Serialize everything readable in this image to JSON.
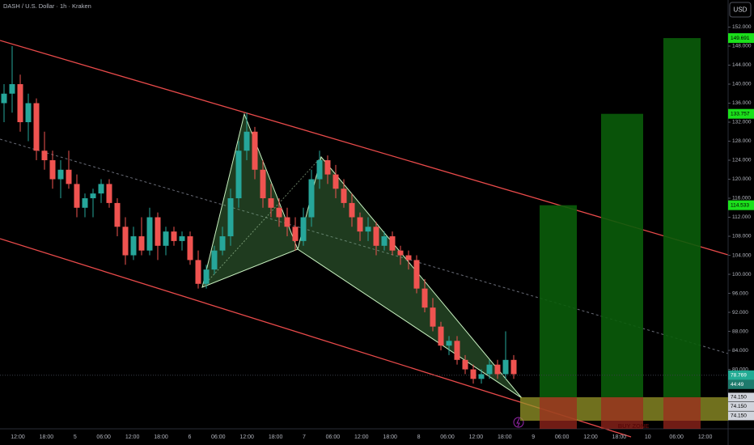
{
  "chart_data": {
    "type": "candlestick",
    "title": "DASH / U.S. Dollar · 1h · Kraken",
    "currency": "USD",
    "up_color": "#26a69a",
    "down_color": "#ef5350",
    "ylim": [
      67.5,
      157.7
    ],
    "yticks": [
      {
        "value": 152,
        "label": "152.000"
      },
      {
        "value": 148,
        "label": "148.000"
      },
      {
        "value": 144,
        "label": "144.000"
      },
      {
        "value": 140,
        "label": "140.000"
      },
      {
        "value": 136,
        "label": "136.000"
      },
      {
        "value": 132,
        "label": "132.000"
      },
      {
        "value": 128,
        "label": "128.000"
      },
      {
        "value": 124,
        "label": "124.000"
      },
      {
        "value": 120,
        "label": "120.000"
      },
      {
        "value": 116,
        "label": "116.000"
      },
      {
        "value": 112,
        "label": "112.000"
      },
      {
        "value": 108,
        "label": "108.000"
      },
      {
        "value": 104,
        "label": "104.000"
      },
      {
        "value": 100,
        "label": "100.000"
      },
      {
        "value": 96,
        "label": "96.000"
      },
      {
        "value": 92,
        "label": "92.000"
      },
      {
        "value": 88,
        "label": "88.000"
      },
      {
        "value": 84,
        "label": "84.000"
      },
      {
        "value": 80,
        "label": "80.000"
      }
    ],
    "x_labels": [
      "12:00",
      "18:00",
      "5",
      "06:00",
      "12:00",
      "18:00",
      "6",
      "06:00",
      "12:00",
      "18:00",
      "7",
      "06:00",
      "12:00",
      "18:00",
      "8",
      "06:00",
      "12:00",
      "18:00",
      "9",
      "06:00",
      "12:00",
      "18:00",
      "10",
      "06:00",
      "12:00"
    ],
    "candles": [
      [
        136,
        140,
        132,
        138
      ],
      [
        138,
        148,
        134,
        140
      ],
      [
        140,
        142,
        130,
        132
      ],
      [
        132,
        138,
        128,
        136
      ],
      [
        136,
        137,
        124,
        126
      ],
      [
        126,
        130,
        122,
        124
      ],
      [
        124,
        126,
        118,
        120
      ],
      [
        120,
        124,
        116,
        122
      ],
      [
        122,
        126,
        118,
        119
      ],
      [
        119,
        121,
        112,
        114
      ],
      [
        114,
        117,
        112,
        116
      ],
      [
        116,
        118,
        112,
        117
      ],
      [
        117,
        120,
        115,
        119
      ],
      [
        119,
        120,
        114,
        115
      ],
      [
        115,
        116,
        108,
        110
      ],
      [
        110,
        112,
        102,
        104
      ],
      [
        104,
        110,
        103,
        108
      ],
      [
        108,
        112,
        104,
        105
      ],
      [
        105,
        114,
        104,
        112
      ],
      [
        112,
        113,
        103,
        106
      ],
      [
        106,
        110,
        104,
        109
      ],
      [
        109,
        110,
        106,
        107
      ],
      [
        107,
        109,
        105,
        108
      ],
      [
        108,
        109,
        102,
        103
      ],
      [
        103,
        105,
        97,
        98
      ],
      [
        98,
        102,
        97,
        101
      ],
      [
        101,
        106,
        100,
        105
      ],
      [
        105,
        110,
        104,
        108
      ],
      [
        108,
        118,
        106,
        116
      ],
      [
        116,
        128,
        114,
        126
      ],
      [
        126,
        134,
        124,
        130
      ],
      [
        130,
        131,
        120,
        122
      ],
      [
        122,
        124,
        114,
        116
      ],
      [
        116,
        119,
        112,
        114
      ],
      [
        114,
        116,
        110,
        112
      ],
      [
        112,
        114,
        108,
        110
      ],
      [
        110,
        112,
        105,
        107
      ],
      [
        107,
        114,
        106,
        112
      ],
      [
        112,
        122,
        110,
        120
      ],
      [
        120,
        126,
        118,
        124
      ],
      [
        124,
        125,
        119,
        121
      ],
      [
        121,
        123,
        116,
        118
      ],
      [
        118,
        120,
        114,
        115
      ],
      [
        115,
        117,
        110,
        112
      ],
      [
        112,
        113,
        107,
        109
      ],
      [
        109,
        112,
        107,
        110
      ],
      [
        110,
        111,
        104,
        106
      ],
      [
        106,
        109,
        105,
        108
      ],
      [
        108,
        109,
        104,
        105
      ],
      [
        105,
        106,
        102,
        104
      ],
      [
        104,
        105,
        101,
        103
      ],
      [
        103,
        104,
        96,
        97
      ],
      [
        97,
        99,
        92,
        93
      ],
      [
        93,
        95,
        88,
        89
      ],
      [
        89,
        90,
        84,
        85
      ],
      [
        85,
        87,
        83,
        86
      ],
      [
        86,
        87,
        81,
        82
      ],
      [
        82,
        83,
        79,
        80
      ],
      [
        80,
        81,
        77,
        78
      ],
      [
        78,
        80,
        77,
        79
      ],
      [
        79,
        82,
        78,
        81
      ],
      [
        81,
        82,
        78,
        79
      ],
      [
        79,
        88,
        78,
        82
      ],
      [
        82,
        83,
        78,
        79
      ]
    ],
    "targets": [
      {
        "value": 114.533,
        "label": "114.533"
      },
      {
        "value": 133.757,
        "label": "133.757"
      },
      {
        "value": 149.691,
        "label": "149.691"
      }
    ],
    "target_color": "#0a5c0a",
    "entry_labels": [
      {
        "value": 74.15,
        "label": "74.150"
      },
      {
        "value": 74.15,
        "label": "74.150"
      },
      {
        "value": 74.15,
        "label": "74.150"
      }
    ],
    "current_price": {
      "value": 78.769,
      "label": "78.769"
    },
    "countdown": "44:49",
    "buy_zone_label": "BUY ZONE"
  }
}
